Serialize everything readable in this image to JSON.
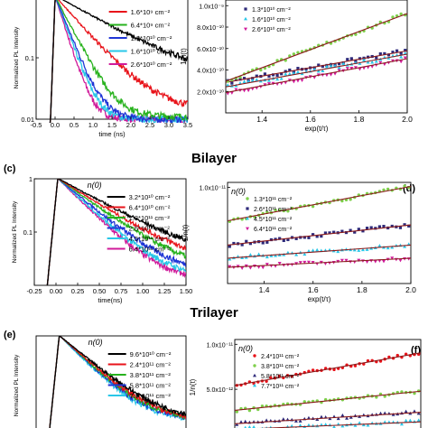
{
  "figure": {
    "colors": {
      "black": "#000000",
      "red": "#e8131a",
      "green": "#27b21d",
      "blue": "#1f36d6",
      "magenta": "#d01b9a",
      "cyan": "#29c7e8",
      "pink": "#d01b9a",
      "navy": "#2e2a7a",
      "lightgreen": "#7ed04b",
      "fit": "#8a1a1a"
    },
    "sections": [
      {
        "title": "",
        "panel_left_label": "",
        "panel_right_label": ""
      },
      {
        "title": "Bilayer",
        "panel_left_label": "(c)",
        "panel_right_label": "(d)"
      },
      {
        "title": "Trilayer",
        "panel_left_label": "(e)",
        "panel_right_label": "(f)"
      }
    ]
  },
  "chart_data": [
    {
      "id": "a",
      "type": "line",
      "ylabel": "Normalized PL Intensity",
      "xlabel": "time (ns)",
      "yscale": "log",
      "xlim": [
        -0.5,
        3.5
      ],
      "ylim": [
        0.01,
        1
      ],
      "xticks": [
        "-0.5",
        "0.0",
        "0.5",
        "1.0",
        "1.5",
        "2.0",
        "2.5",
        "3.0",
        "3.5"
      ],
      "yticks": [
        "0.1",
        "0.01"
      ],
      "legend_header": "",
      "series": [
        {
          "name": "",
          "color": "black",
          "tau": 1.2,
          "tail": 0.04
        },
        {
          "name": "1.6*10⁹ cm⁻²",
          "color": "red",
          "tau": 0.62,
          "tail": 0.014
        },
        {
          "name": "6.4*10⁹ cm⁻²",
          "color": "green",
          "tau": 0.36,
          "tail": 0.011
        },
        {
          "name": "1.3*10¹⁰ cm⁻²",
          "color": "blue",
          "tau": 0.28,
          "tail": 0.01
        },
        {
          "name": "1.6*10¹⁰ cm⁻²",
          "color": "cyan",
          "tau": 0.25,
          "tail": 0.01
        },
        {
          "name": "2.6*10¹⁰ cm⁻²",
          "color": "magenta",
          "tau": 0.22,
          "tail": 0.01
        }
      ]
    },
    {
      "id": "b",
      "type": "scatter",
      "ylabel": "1/n(t)",
      "xlabel": "exp(t/τ)",
      "xlim": [
        1.25,
        2.0
      ],
      "ylim": [
        0,
        1.0
      ],
      "xticks": [
        "1.4",
        "1.6",
        "1.8",
        "2.0"
      ],
      "yticks": [
        "2.0x10⁻¹⁰",
        "4.0x10⁻¹⁰",
        "6.0x10⁻¹⁰",
        "8.0x10⁻¹⁰",
        "1.0x10⁻⁹"
      ],
      "series": [
        {
          "name": "1.3*10¹⁰ cm⁻²",
          "color": "navy",
          "marker": "square",
          "y0": 0.27,
          "y1": 0.55
        },
        {
          "name": "1.6*10¹⁰ cm⁻²",
          "color": "cyan",
          "marker": "triangle",
          "y0": 0.23,
          "y1": 0.52
        },
        {
          "name": "2.6*10¹⁰ cm⁻²",
          "color": "pink",
          "marker": "triangle-down",
          "y0": 0.18,
          "y1": 0.48
        },
        {
          "name": "",
          "color": "lightgreen",
          "marker": "circle",
          "y0": 0.28,
          "y1": 0.88
        }
      ]
    },
    {
      "id": "c",
      "type": "line",
      "ylabel": "Normalized PL Intensity",
      "xlabel": "time(ns)",
      "yscale": "log",
      "xlim": [
        -0.25,
        1.5
      ],
      "ylim": [
        0.01,
        1
      ],
      "xticks": [
        "-0.25",
        "0.00",
        "0.25",
        "0.50",
        "0.75",
        "1.00",
        "1.25",
        "1.50"
      ],
      "yticks": [
        "1",
        "0.1"
      ],
      "legend_header": "n(0)",
      "series": [
        {
          "name": "3.2*10¹⁰ cm⁻²",
          "color": "black",
          "tau": 0.48,
          "tail": 0.025
        },
        {
          "name": "6.4*10¹⁰ cm⁻²",
          "color": "red",
          "tau": 0.42,
          "tail": 0.02
        },
        {
          "name": "1.3*10¹¹ cm⁻²",
          "color": "green",
          "tau": 0.37,
          "tail": 0.017
        },
        {
          "name": "2.6*10¹¹ cm⁻²",
          "color": "blue",
          "tau": 0.32,
          "tail": 0.015
        },
        {
          "name": "4.5*10¹¹ cm⁻²",
          "color": "cyan",
          "tau": 0.29,
          "tail": 0.013
        },
        {
          "name": "6.4*10¹¹ cm⁻²",
          "color": "magenta",
          "tau": 0.27,
          "tail": 0.012
        }
      ]
    },
    {
      "id": "d",
      "type": "scatter",
      "ylabel": "1/n(t)",
      "xlabel": "exp(t/τ)",
      "xlim": [
        1.25,
        2.0
      ],
      "ylim": [
        0,
        1.0
      ],
      "xticks": [
        "1.4",
        "1.6",
        "1.8",
        "2.0"
      ],
      "yticks": [
        "1.0x10⁻¹¹"
      ],
      "legend_header": "n(0)",
      "series": [
        {
          "name": "1.3*10¹¹ cm⁻²",
          "color": "lightgreen",
          "marker": "circle",
          "y0": 0.62,
          "y1": 0.96
        },
        {
          "name": "2.6*10¹¹ cm⁻²",
          "color": "navy",
          "marker": "square",
          "y0": 0.38,
          "y1": 0.58
        },
        {
          "name": "4.5*10¹¹ cm⁻²",
          "color": "cyan",
          "marker": "triangle",
          "y0": 0.25,
          "y1": 0.38
        },
        {
          "name": "6.4*10¹¹ cm⁻²",
          "color": "pink",
          "marker": "triangle-down",
          "y0": 0.16,
          "y1": 0.25
        }
      ]
    },
    {
      "id": "e",
      "type": "line",
      "ylabel": "Normalized PL Intensity",
      "xlabel": "",
      "yscale": "log",
      "xlim": [
        -0.25,
        1.5
      ],
      "ylim": [
        0.01,
        1
      ],
      "legend_header": "n(0)",
      "series": [
        {
          "name": "9.6*10¹⁰ cm⁻²",
          "color": "black",
          "tau": 0.3,
          "tail": 0.02
        },
        {
          "name": "2.4*10¹¹ cm⁻²",
          "color": "red",
          "tau": 0.28,
          "tail": 0.02
        },
        {
          "name": "3.8*10¹¹ cm⁻²",
          "color": "green",
          "tau": 0.27,
          "tail": 0.02
        },
        {
          "name": "5.8*10¹¹ cm⁻²",
          "color": "blue",
          "tau": 0.26,
          "tail": 0.02
        },
        {
          "name": "7.7*10¹¹ cm⁻²",
          "color": "cyan",
          "tau": 0.25,
          "tail": 0.02
        }
      ]
    },
    {
      "id": "f",
      "type": "scatter",
      "ylabel": "1/n(t)",
      "xlabel": "",
      "xlim": [
        1.25,
        2.0
      ],
      "ylim": [
        0,
        1.0
      ],
      "yticks": [
        "1.0x10⁻¹¹",
        "5.0x10⁻¹²"
      ],
      "legend_header": "n(0)",
      "series": [
        {
          "name": "2.4*10¹¹ cm⁻²",
          "color": "red",
          "marker": "circle",
          "y0": 0.52,
          "y1": 0.86
        },
        {
          "name": "3.8*10¹¹ cm⁻²",
          "color": "lightgreen",
          "marker": "circle",
          "y0": 0.26,
          "y1": 0.46
        },
        {
          "name": "5.8*10¹¹ cm⁻²",
          "color": "navy",
          "marker": "triangle",
          "y0": 0.12,
          "y1": 0.24
        },
        {
          "name": "7.7*10¹¹ cm⁻²",
          "color": "cyan",
          "marker": "triangle",
          "y0": 0.06,
          "y1": 0.14
        }
      ]
    }
  ]
}
